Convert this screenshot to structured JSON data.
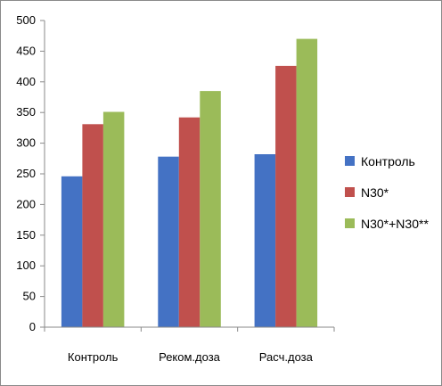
{
  "chart_data": {
    "type": "bar",
    "categories": [
      "Контроль",
      "Реком.доза",
      "Расч.доза"
    ],
    "series": [
      {
        "name": "Контроль",
        "values": [
          246,
          278,
          282
        ],
        "color": "#4472C4"
      },
      {
        "name": "N30*",
        "values": [
          331,
          342,
          426
        ],
        "color": "#C0504D"
      },
      {
        "name": "N30*+N30**",
        "values": [
          351,
          385,
          470
        ],
        "color": "#9BBB59"
      }
    ],
    "ylim": [
      0,
      500
    ],
    "yticks": [
      0,
      50,
      100,
      150,
      200,
      250,
      300,
      350,
      400,
      450,
      500
    ],
    "title": "",
    "xlabel": "",
    "ylabel": "",
    "grid": false,
    "legend_position": "right"
  }
}
